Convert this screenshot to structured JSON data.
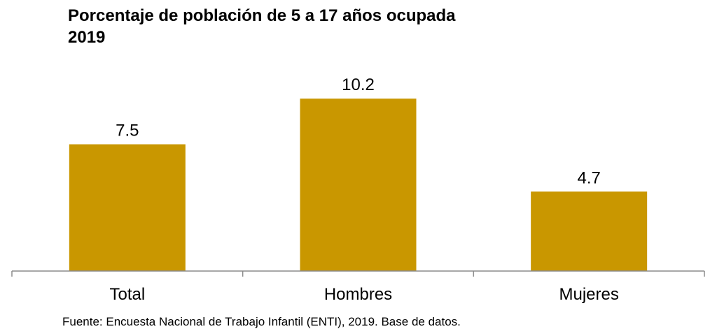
{
  "chart_data": {
    "type": "bar",
    "title": "Porcentaje de población de 5 a 17 años ocupada",
    "subtitle": "2019",
    "categories": [
      "Total",
      "Hombres",
      "Mujeres"
    ],
    "values": [
      7.5,
      10.2,
      4.7
    ],
    "value_labels": [
      "7.5",
      "10.2",
      "4.7"
    ],
    "bar_color": "#C99700",
    "ylim": [
      0,
      12.4
    ],
    "grid": false,
    "legend": "none"
  },
  "footer": {
    "source": "Fuente: Encuesta Nacional de Trabajo Infantil (ENTI), 2019. Base de datos."
  }
}
